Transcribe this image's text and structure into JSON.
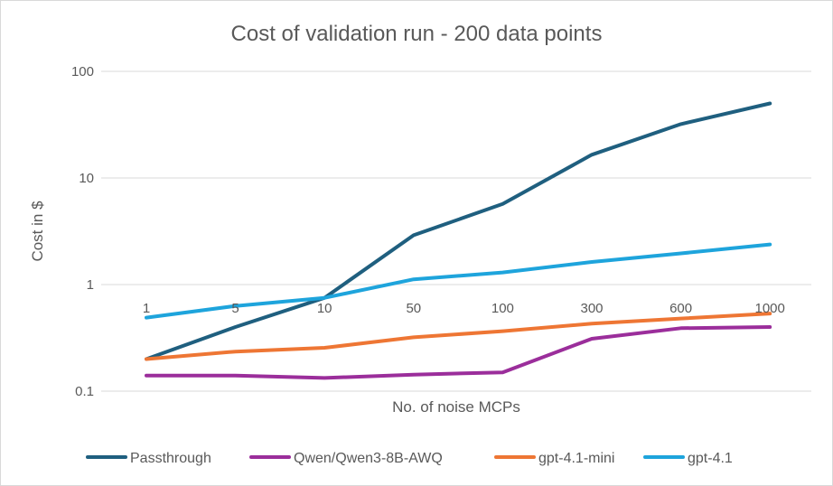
{
  "chart_data": {
    "type": "line",
    "title": "Cost of validation run - 200 data points",
    "xlabel": "No. of noise MCPs",
    "ylabel": "Cost in $",
    "yscale": "log",
    "ylim": [
      0.1,
      100
    ],
    "ytick_labels": [
      "0.1",
      "1",
      "10",
      "100"
    ],
    "categories": [
      "1",
      "5",
      "10",
      "50",
      "100",
      "300",
      "600",
      "1000"
    ],
    "grid": "horizontal",
    "legend_position": "bottom",
    "series": [
      {
        "name": "Passthrough",
        "color": "#1f5f7f",
        "values": [
          0.2,
          0.4,
          0.75,
          2.9,
          5.7,
          16.5,
          32,
          50
        ]
      },
      {
        "name": "Qwen/Qwen3-8B-AWQ",
        "color": "#9b2e9b",
        "values": [
          0.14,
          0.14,
          0.133,
          0.143,
          0.15,
          0.31,
          0.39,
          0.4
        ]
      },
      {
        "name": "gpt-4.1-mini",
        "color": "#ee7634",
        "values": [
          0.2,
          0.235,
          0.255,
          0.32,
          0.365,
          0.43,
          0.48,
          0.535
        ]
      },
      {
        "name": "gpt-4.1",
        "color": "#1ea4dc",
        "values": [
          0.49,
          0.63,
          0.75,
          1.12,
          1.3,
          1.63,
          1.96,
          2.38
        ]
      }
    ]
  }
}
